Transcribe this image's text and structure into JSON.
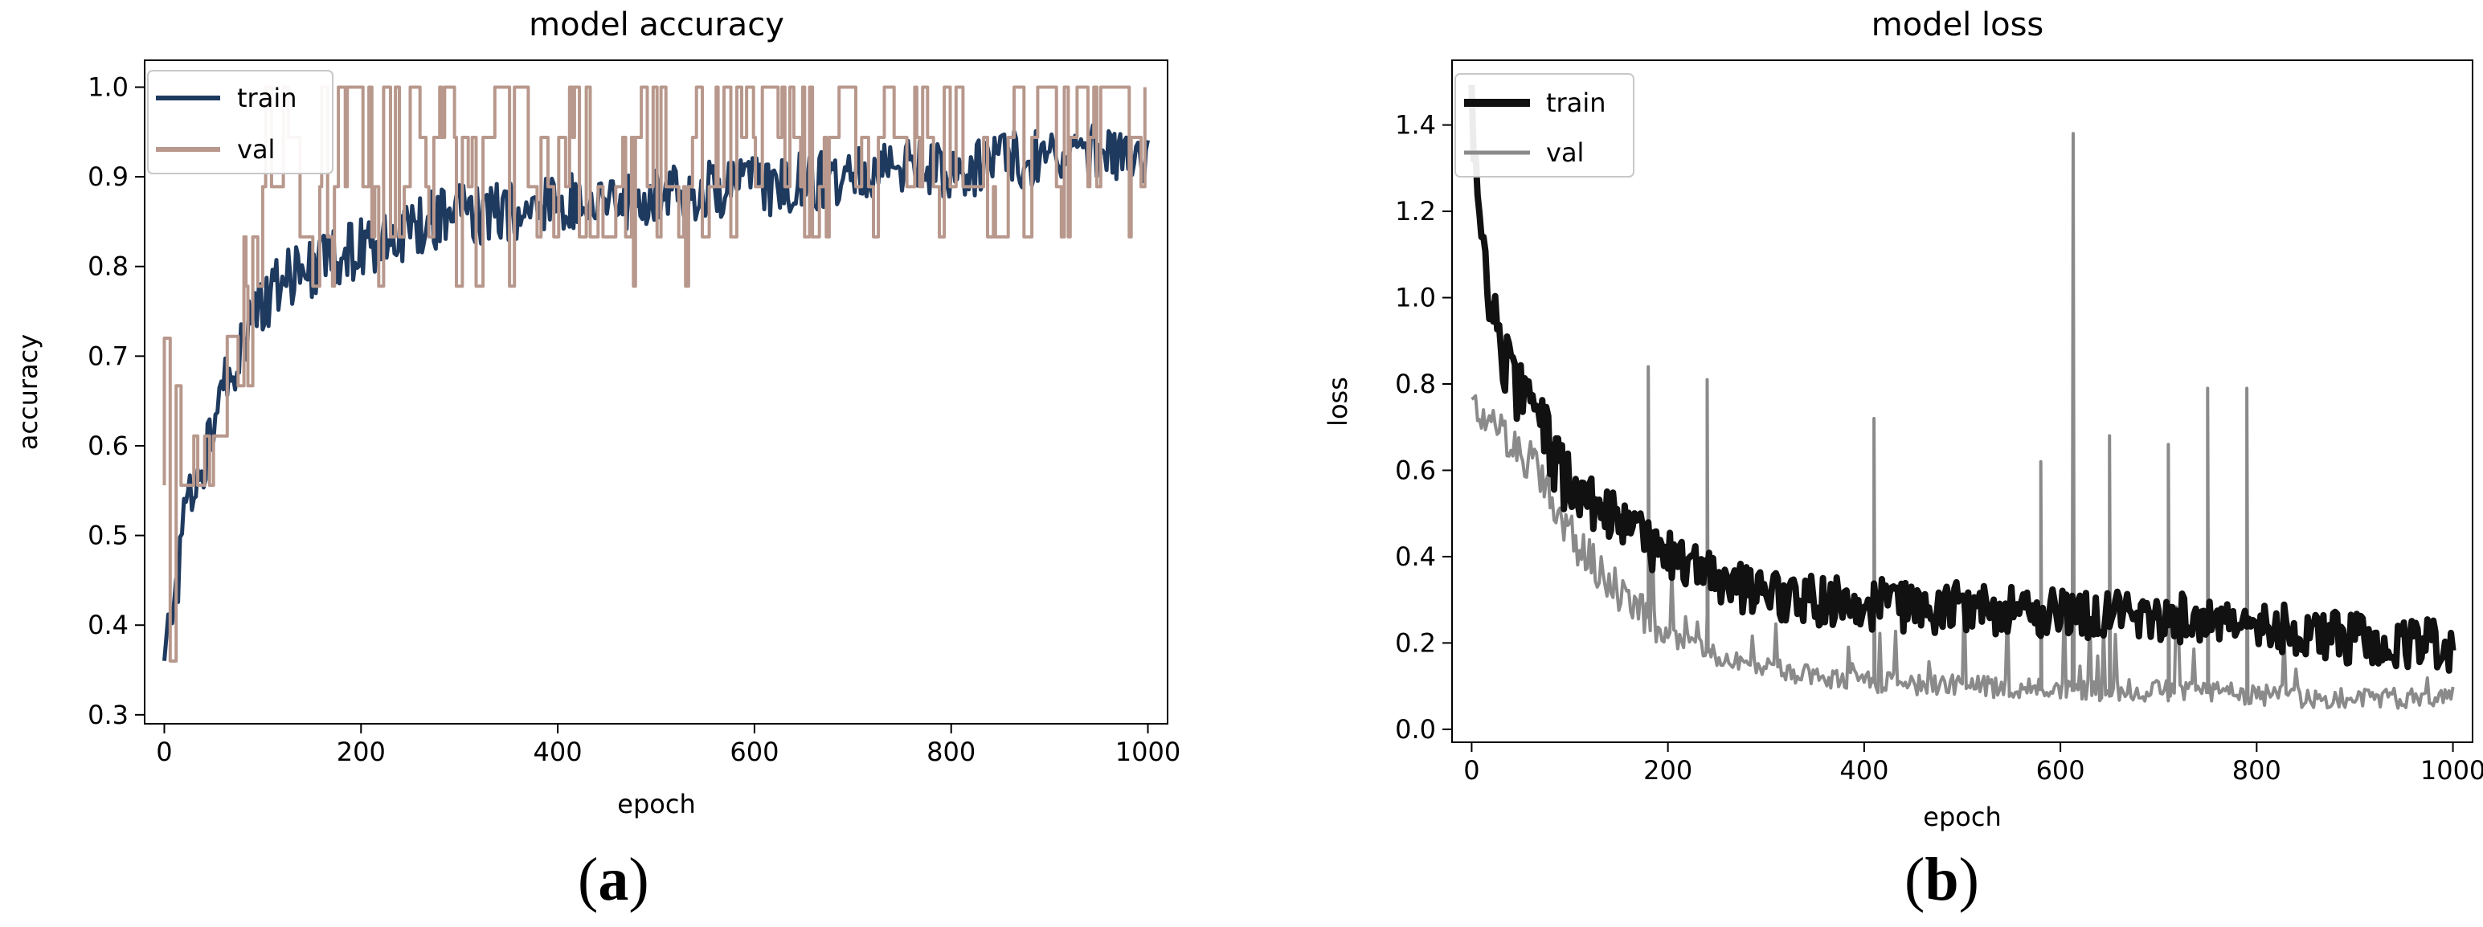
{
  "panels": [
    {
      "label_open": "(",
      "label_letter": "a",
      "label_close": ")"
    },
    {
      "label_open": "(",
      "label_letter": "b",
      "label_close": ")"
    }
  ],
  "chart_data": [
    {
      "type": "line",
      "title": "model accuracy",
      "xlabel": "epoch",
      "ylabel": "accuracy",
      "xlim": [
        -20,
        1020
      ],
      "ylim": [
        0.29,
        1.03
      ],
      "xticks": [
        0,
        200,
        400,
        600,
        800,
        1000
      ],
      "yticks": [
        0.3,
        0.4,
        0.5,
        0.6,
        0.7,
        0.8,
        0.9,
        1.0
      ],
      "ytick_labels": [
        "0.3",
        "0.4",
        "0.5",
        "0.6",
        "0.7",
        "0.8",
        "0.9",
        "1.0"
      ],
      "legend": "top-left",
      "grid": false,
      "series": [
        {
          "name": "train",
          "color": "#1f3a5f",
          "style": "noisy",
          "x": [
            0,
            5,
            10,
            15,
            20,
            30,
            40,
            50,
            60,
            80,
            100,
            120,
            150,
            200,
            250,
            300,
            350,
            400,
            500,
            600,
            700,
            800,
            900,
            1000
          ],
          "y": [
            0.36,
            0.4,
            0.42,
            0.46,
            0.52,
            0.55,
            0.58,
            0.62,
            0.66,
            0.72,
            0.76,
            0.78,
            0.8,
            0.82,
            0.84,
            0.86,
            0.86,
            0.87,
            0.88,
            0.89,
            0.9,
            0.91,
            0.92,
            0.93
          ]
        },
        {
          "name": "val",
          "color": "#b8988c",
          "style": "stepped",
          "x": [
            0,
            5,
            10,
            20,
            40,
            60,
            80,
            100,
            120,
            150,
            200,
            250,
            300,
            400,
            500,
            600,
            700,
            800,
            900,
            1000
          ],
          "y": [
            0.56,
            0.56,
            0.56,
            0.56,
            0.56,
            0.64,
            0.72,
            0.78,
            0.83,
            0.86,
            0.89,
            0.89,
            0.89,
            0.89,
            0.9,
            0.9,
            0.91,
            0.91,
            0.92,
            0.93
          ]
        }
      ]
    },
    {
      "type": "line",
      "title": "model loss",
      "xlabel": "epoch",
      "ylabel": "loss",
      "xlim": [
        -20,
        1020
      ],
      "ylim": [
        -0.03,
        1.55
      ],
      "xticks": [
        0,
        200,
        400,
        600,
        800,
        1000
      ],
      "yticks": [
        0.0,
        0.2,
        0.4,
        0.6,
        0.8,
        1.0,
        1.2,
        1.4
      ],
      "ytick_labels": [
        "0.0",
        "0.2",
        "0.4",
        "0.6",
        "0.8",
        "1.0",
        "1.2",
        "1.4"
      ],
      "legend": "top-left",
      "grid": false,
      "series": [
        {
          "name": "train",
          "color": "#111111",
          "style": "noisy",
          "x": [
            0,
            10,
            20,
            40,
            60,
            80,
            100,
            150,
            200,
            250,
            300,
            400,
            500,
            600,
            700,
            800,
            900,
            1000
          ],
          "y": [
            1.45,
            1.15,
            0.95,
            0.82,
            0.74,
            0.65,
            0.56,
            0.48,
            0.4,
            0.35,
            0.31,
            0.29,
            0.28,
            0.27,
            0.26,
            0.24,
            0.21,
            0.19
          ]
        },
        {
          "name": "val",
          "color": "#8a8a8a",
          "style": "spiky",
          "x": [
            0,
            10,
            20,
            40,
            60,
            80,
            100,
            150,
            200,
            250,
            300,
            400,
            500,
            600,
            700,
            800,
            900,
            1000
          ],
          "y": [
            0.8,
            0.72,
            0.7,
            0.67,
            0.62,
            0.55,
            0.45,
            0.32,
            0.22,
            0.17,
            0.14,
            0.11,
            0.1,
            0.09,
            0.09,
            0.08,
            0.07,
            0.07
          ],
          "spikes": [
            {
              "x": 180,
              "y": 0.84
            },
            {
              "x": 240,
              "y": 0.81
            },
            {
              "x": 410,
              "y": 0.72
            },
            {
              "x": 580,
              "y": 0.62
            },
            {
              "x": 613,
              "y": 1.38
            },
            {
              "x": 650,
              "y": 0.68
            },
            {
              "x": 710,
              "y": 0.66
            },
            {
              "x": 750,
              "y": 0.79
            },
            {
              "x": 790,
              "y": 0.79
            }
          ]
        }
      ]
    }
  ]
}
